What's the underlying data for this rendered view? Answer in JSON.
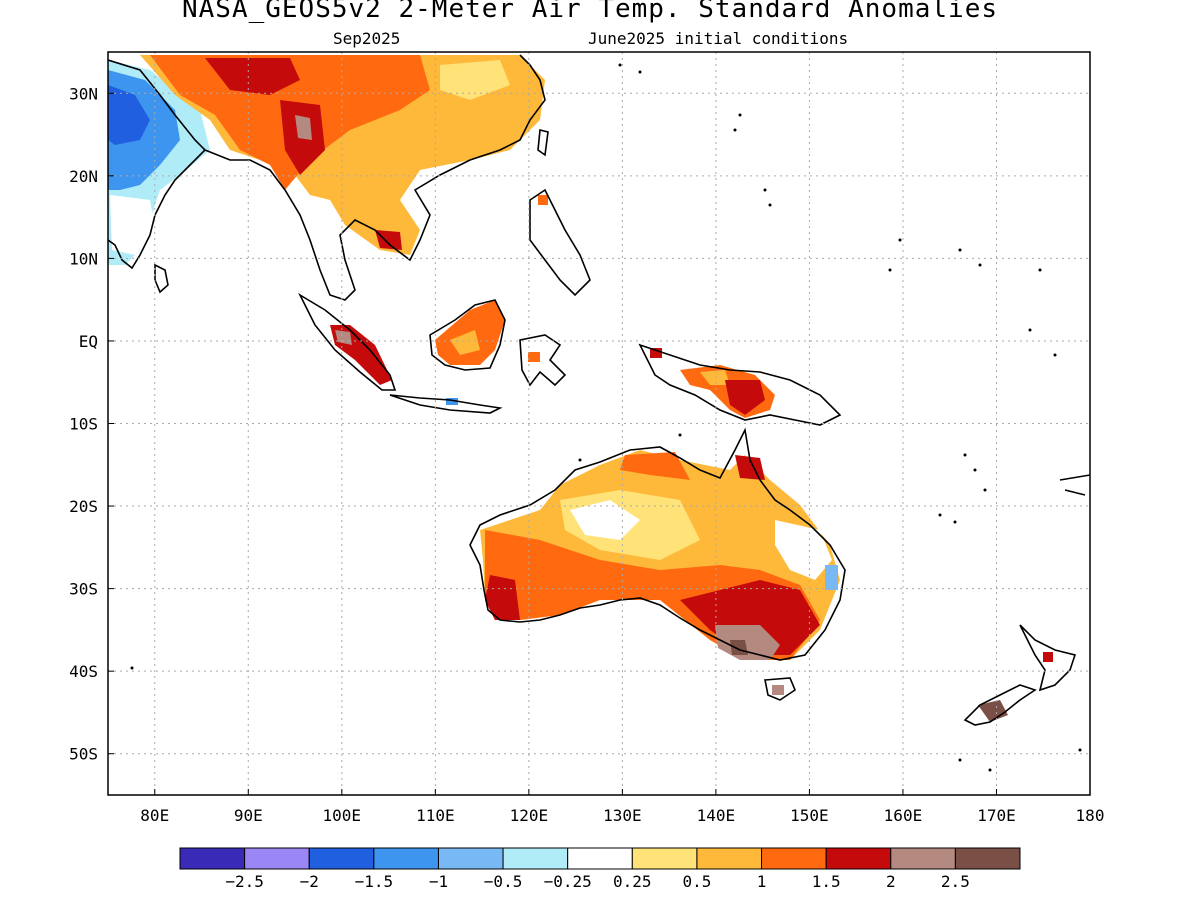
{
  "header": {
    "title": "NASA_GEOS5v2 2-Meter Air Temp. Standard Anomalies",
    "valid_month": "Sep2025",
    "initial_conditions": "June2025 initial conditions"
  },
  "map": {
    "lon_range": [
      75,
      180
    ],
    "lat_range": [
      -55,
      35
    ],
    "lat_ticks": [
      "30N",
      "20N",
      "10N",
      "EQ",
      "10S",
      "20S",
      "30S",
      "40S",
      "50S"
    ],
    "lon_ticks": [
      "80E",
      "90E",
      "100E",
      "110E",
      "120E",
      "130E",
      "140E",
      "150E",
      "160E",
      "170E",
      "180"
    ]
  },
  "legend": {
    "colors": [
      "#3a2ab8",
      "#9a86f5",
      "#1f5fe0",
      "#3d95f0",
      "#78b8f5",
      "#b0ecf8",
      "#ffffff",
      "#ffe278",
      "#ffb93a",
      "#ff6a10",
      "#c40a0a",
      "#b48a80",
      "#7a5046"
    ],
    "labels": [
      "-2.5",
      "-2",
      "-1.5",
      "-1",
      "-0.5",
      "-0.25",
      "0.25",
      "0.5",
      "1",
      "1.5",
      "2",
      "2.5"
    ]
  }
}
